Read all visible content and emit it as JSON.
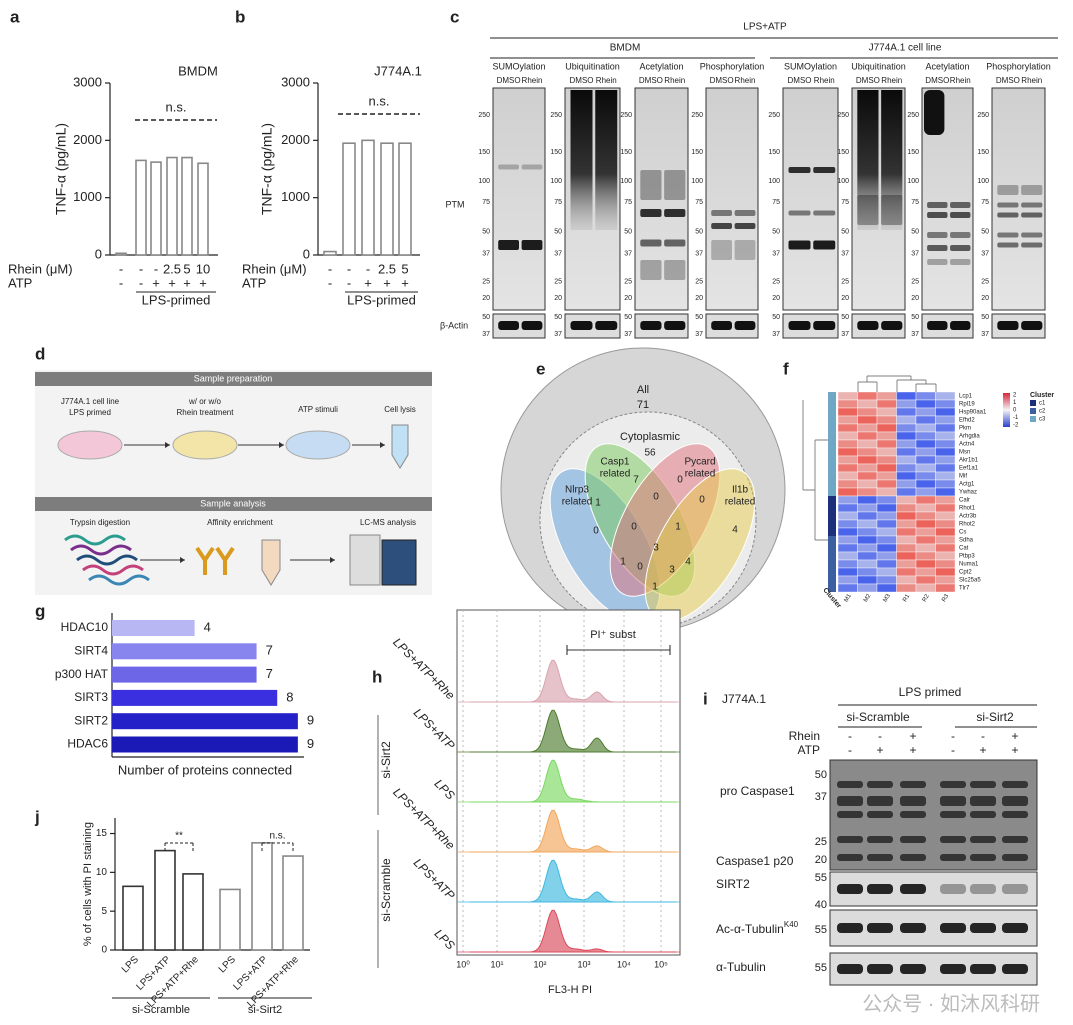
{
  "panel_labels": [
    "a",
    "b",
    "c",
    "d",
    "e",
    "f",
    "g",
    "h",
    "i",
    "j"
  ],
  "chart_data": [
    {
      "type": "bar",
      "title": "BMDM",
      "ylabel": "TNF-α (pg/mL)",
      "values": [
        30,
        1650,
        1620,
        1700,
        1700,
        1600
      ],
      "color": "#ffffff",
      "edge_color": "#888888",
      "ylim": [
        0,
        3000
      ],
      "yticks": [
        0,
        1000,
        2000,
        3000
      ],
      "annotation": "n.s.",
      "rows": [
        {
          "label": "Rhein (μM)",
          "values": [
            "-",
            "-",
            "-",
            "2.5",
            "5",
            "10"
          ]
        },
        {
          "label": "ATP",
          "values": [
            "-",
            "-",
            "+",
            "+",
            "+",
            "+"
          ]
        }
      ],
      "group_label": "LPS-primed"
    },
    {
      "type": "bar",
      "title": "J774A.1",
      "ylabel": "TNF-α (pg/mL)",
      "values": [
        60,
        1950,
        2000,
        1950,
        1950
      ],
      "color": "#ffffff",
      "edge_color": "#888888",
      "ylim": [
        0,
        3000
      ],
      "yticks": [
        0,
        1000,
        2000,
        3000
      ],
      "annotation": "n.s.",
      "rows": [
        {
          "label": "Rhein (μM)",
          "values": [
            "-",
            "-",
            "-",
            "2.5",
            "5"
          ]
        },
        {
          "label": "ATP",
          "values": [
            "-",
            "-",
            "+",
            "+",
            "+"
          ]
        }
      ],
      "group_label": "LPS-primed"
    },
    {
      "type": "hbar",
      "categories": [
        "HDAC10",
        "SIRT4",
        "p300 HAT",
        "SIRT3",
        "SIRT2",
        "HDAC6"
      ],
      "values": [
        4,
        7,
        7,
        8,
        9,
        9
      ],
      "colors": [
        "#b9b7f3",
        "#8985ee",
        "#6d67e8",
        "#3a30e0",
        "#2421c8",
        "#1c1ab6"
      ],
      "xlabel": "Number of proteins connected",
      "xlim": [
        0,
        9.2
      ]
    },
    {
      "type": "bar",
      "ylabel": "% of cells with PI staining",
      "categories": [
        "LPS",
        "LPS+ATP",
        "LPS+ATP+Rhe",
        "LPS",
        "LPS+ATP",
        "LPS+ATP+Rhe"
      ],
      "values": [
        8.2,
        12.8,
        9.8,
        7.8,
        13.8,
        12.1
      ],
      "colors": [
        "#ffffff",
        "#ffffff",
        "#ffffff",
        "#ffffff",
        "#ffffff",
        "#ffffff"
      ],
      "edge_colors": [
        "#333333",
        "#333333",
        "#333333",
        "#888888",
        "#888888",
        "#888888"
      ],
      "ylim": [
        0,
        17
      ],
      "yticks": [
        0,
        5,
        10,
        15
      ],
      "groups": [
        "si-Scramble",
        "si-Sirt2"
      ],
      "annotations": [
        "**",
        "n.s."
      ]
    }
  ],
  "blot_c": {
    "header": "LPS+ATP",
    "groups": [
      "BMDM",
      "J774A.1 cell line"
    ],
    "columns": [
      "SUMOylation",
      "Ubiquitination",
      "Acetylation",
      "Phosphorylation",
      "SUMOylation",
      "Ubiquitination",
      "Acetylation",
      "Phosphorylation"
    ],
    "lanes": [
      "DMSO",
      "Rhein"
    ],
    "row_labels": [
      "PTM",
      "β-Actin"
    ],
    "markers": [
      250,
      150,
      100,
      75,
      50,
      37,
      25,
      20
    ],
    "actin_markers": [
      50,
      37
    ]
  },
  "diagram_d": {
    "sections": [
      "Sample preparation",
      "Sample analysis"
    ],
    "prep_steps": [
      [
        "J774A.1 cell line",
        "LPS primed"
      ],
      [
        "w/ or w/o",
        "Rhein treatment"
      ],
      [
        "ATP stimuli"
      ],
      [
        "Cell lysis"
      ]
    ],
    "analysis_steps": [
      "Trypsin digestion",
      "Affinity enrichment",
      "LC-MS analysis"
    ]
  },
  "venn_e": {
    "outer": {
      "label": "All",
      "count": 71
    },
    "inner": {
      "label": "Cytoplasmic",
      "count": 56
    },
    "sets": [
      [
        "Nlrp3",
        "related"
      ],
      [
        "Casp1",
        "related"
      ],
      [
        "Pycard",
        "related"
      ],
      [
        "Il1b",
        "related"
      ]
    ],
    "regions": [
      7,
      0,
      1,
      0,
      0,
      0,
      0,
      1,
      4,
      3,
      4,
      1,
      0,
      3,
      1
    ]
  },
  "heatmap_f": {
    "genes": [
      "Lcp1",
      "Rpl19",
      "Hsp90aa1",
      "Efhd2",
      "Pkm",
      "Arhgdia",
      "Actn4",
      "Msn",
      "Akr1b1",
      "Eef1a1",
      "Mif",
      "Actg1",
      "Ywhaz",
      "Calr",
      "Rhot1",
      "Actr3b",
      "Rhot2",
      "Cs",
      "Sdha",
      "Cat",
      "Ptbp3",
      "Numa1",
      "Cpt2",
      "Slc25a5",
      "Tlr7"
    ],
    "samples": [
      "M1",
      "M2",
      "M3",
      "R1",
      "R2",
      "R3"
    ],
    "colorbar_ticks": [
      "2",
      "1",
      "0",
      "-1",
      "-2"
    ],
    "legend_title": "Cluster",
    "clusters": [
      "c1",
      "c2",
      "c3"
    ],
    "row_annotation": "Cluster"
  },
  "flow_h": {
    "xlabel": "FL3-H PI",
    "gate_label": "PI⁺ subst",
    "xticks": [
      "10⁰",
      "10¹",
      "10²",
      "10³",
      "10⁴",
      "10⁵"
    ],
    "conditions": [
      "LPS+ATP+Rhe",
      "LPS+ATP",
      "LPS",
      "LPS+ATP+Rhe",
      "LPS+ATP",
      "LPS"
    ],
    "groups": [
      "si-Sirt2",
      "si-Scramble"
    ]
  },
  "blot_i": {
    "title": "J774A.1",
    "header": "LPS primed",
    "groups": [
      "si-Scramble",
      "si-Sirt2"
    ],
    "rows": [
      {
        "label": "Rhein",
        "values": [
          "-",
          "-",
          "+",
          "-",
          "-",
          "+"
        ]
      },
      {
        "label": "ATP",
        "values": [
          "-",
          "+",
          "+",
          "-",
          "+",
          "+"
        ]
      }
    ],
    "blots": [
      {
        "label": "pro Caspase1",
        "sublabel": "Caspase1 p20",
        "markers": [
          50,
          37,
          25,
          20
        ]
      },
      {
        "label": "SIRT2",
        "markers": [
          55,
          40
        ]
      },
      {
        "label": "Ac-α-Tubulin",
        "superscript": "K40",
        "markers": [
          55
        ]
      },
      {
        "label": "α-Tubulin",
        "markers": [
          55
        ]
      }
    ]
  },
  "watermark": "公众号 · 如沐风科研"
}
